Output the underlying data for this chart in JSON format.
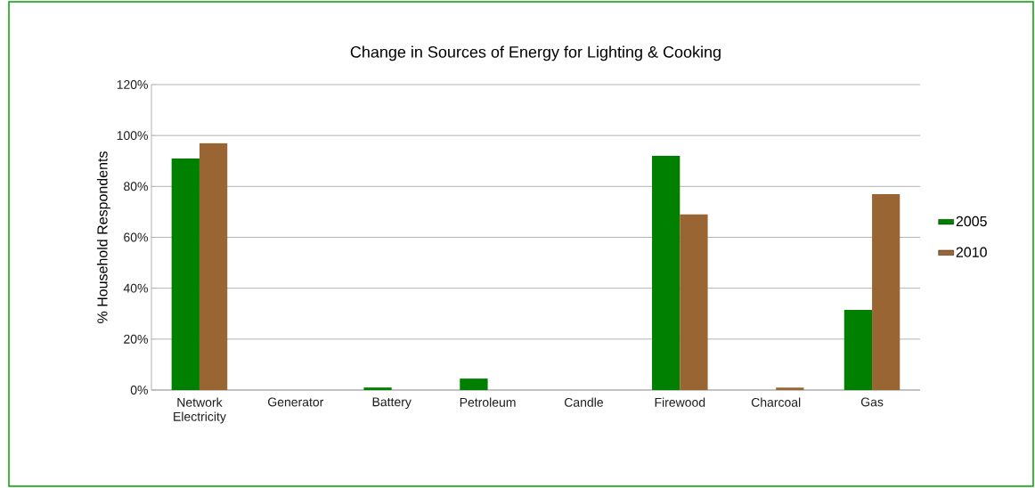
{
  "chart_data": {
    "type": "bar",
    "title": "Change in Sources of Energy for Lighting & Cooking",
    "ylabel": "% Household Respondents",
    "categories": [
      "Network Electricity",
      "Generator",
      "Battery",
      "Petroleum",
      "Candle",
      "Firewood",
      "Charcoal",
      "Gas"
    ],
    "series": [
      {
        "name": "2005",
        "color": "#008000",
        "values": [
          91,
          0,
          1,
          4.5,
          0,
          92,
          0,
          31.5
        ]
      },
      {
        "name": "2010",
        "color": "#996633",
        "values": [
          97,
          0,
          0,
          0,
          0,
          69,
          1,
          77
        ]
      }
    ],
    "ylim": [
      0,
      120
    ],
    "yticks": [
      {
        "value": 0,
        "label": "0%"
      },
      {
        "value": 20,
        "label": "20%"
      },
      {
        "value": 40,
        "label": "40%"
      },
      {
        "value": 60,
        "label": "60%"
      },
      {
        "value": 80,
        "label": "80%"
      },
      {
        "value": 100,
        "label": "100%"
      },
      {
        "value": 120,
        "label": "120%"
      }
    ],
    "grid": "y",
    "legend": "right"
  }
}
